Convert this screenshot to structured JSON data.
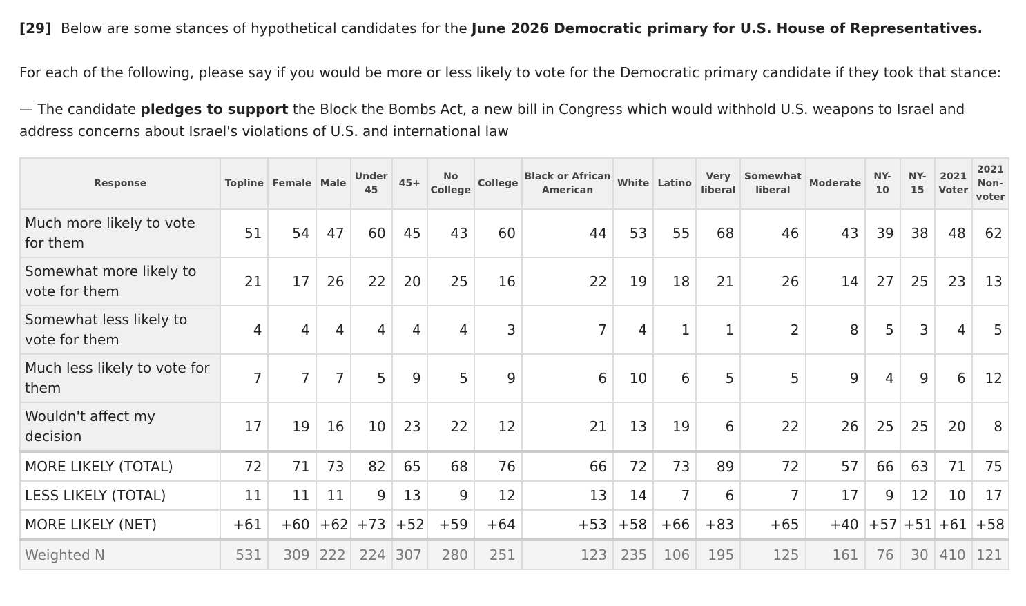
{
  "question": {
    "number": "[29]",
    "intro": "Below are some stances of hypothetical candidates for the ",
    "intro_bold": "June 2026 Democratic primary for U.S. House of Representatives.",
    "instruction": "For each of the following, please say if you would be more or less likely to vote for the Democratic primary candidate if they took that stance:",
    "stance_prefix": "— The candidate ",
    "stance_bold": "pledges to support",
    "stance_rest": " the Block the Bombs Act, a new bill in Congress which would withhold U.S. weapons to Israel and address concerns about Israel's violations of U.S. and international law"
  },
  "table": {
    "headers": [
      "Response",
      "Topline",
      "Female",
      "Male",
      "Under 45",
      "45+",
      "No College",
      "College",
      "Black or African American",
      "White",
      "Latino",
      "Very liberal",
      "Somewhat liberal",
      "Moderate",
      "NY-10",
      "NY-15",
      "2021 Voter",
      "2021 Non-voter"
    ],
    "rows": [
      {
        "label": "Much more likely to vote for them",
        "values": [
          "51",
          "54",
          "47",
          "60",
          "45",
          "43",
          "60",
          "44",
          "53",
          "55",
          "68",
          "46",
          "43",
          "39",
          "38",
          "48",
          "62"
        ]
      },
      {
        "label": "Somewhat more likely to vote for them",
        "values": [
          "21",
          "17",
          "26",
          "22",
          "20",
          "25",
          "16",
          "22",
          "19",
          "18",
          "21",
          "26",
          "14",
          "27",
          "25",
          "23",
          "13"
        ]
      },
      {
        "label": "Somewhat less likely to vote for them",
        "values": [
          "4",
          "4",
          "4",
          "4",
          "4",
          "4",
          "3",
          "7",
          "4",
          "1",
          "1",
          "2",
          "8",
          "5",
          "3",
          "4",
          "5"
        ]
      },
      {
        "label": "Much less likely to vote for them",
        "values": [
          "7",
          "7",
          "7",
          "5",
          "9",
          "5",
          "9",
          "6",
          "10",
          "6",
          "5",
          "5",
          "9",
          "4",
          "9",
          "6",
          "12"
        ]
      },
      {
        "label": "Wouldn't affect my decision",
        "values": [
          "17",
          "19",
          "16",
          "10",
          "23",
          "22",
          "12",
          "21",
          "13",
          "19",
          "6",
          "22",
          "26",
          "25",
          "25",
          "20",
          "8"
        ]
      }
    ],
    "totals": [
      {
        "label": "MORE LIKELY (TOTAL)",
        "values": [
          "72",
          "71",
          "73",
          "82",
          "65",
          "68",
          "76",
          "66",
          "72",
          "73",
          "89",
          "72",
          "57",
          "66",
          "63",
          "71",
          "75"
        ]
      },
      {
        "label": "LESS LIKELY (TOTAL)",
        "values": [
          "11",
          "11",
          "11",
          "9",
          "13",
          "9",
          "12",
          "13",
          "14",
          "7",
          "6",
          "7",
          "17",
          "9",
          "12",
          "10",
          "17"
        ]
      },
      {
        "label": "MORE LIKELY (NET)",
        "values": [
          "+61",
          "+60",
          "+62",
          "+73",
          "+52",
          "+59",
          "+64",
          "+53",
          "+58",
          "+66",
          "+83",
          "+65",
          "+40",
          "+57",
          "+51",
          "+61",
          "+58"
        ]
      }
    ],
    "weighted": {
      "label": "Weighted N",
      "values": [
        "531",
        "309",
        "222",
        "224",
        "307",
        "280",
        "251",
        "123",
        "235",
        "106",
        "195",
        "125",
        "161",
        "76",
        "30",
        "410",
        "121"
      ]
    }
  }
}
